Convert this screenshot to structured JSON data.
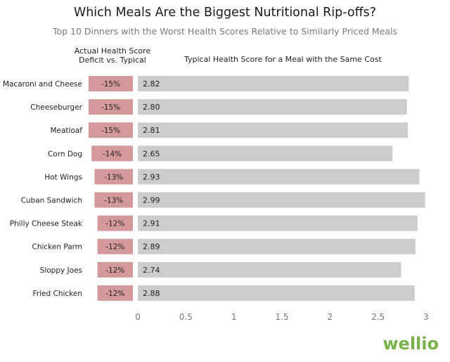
{
  "brand": {
    "text": "wellio",
    "color": "#7ab24a"
  },
  "chart_data": {
    "type": "bar",
    "title": "Which Meals Are the Biggest Nutritional Rip-offs?",
    "subtitle": "Top 10 Dinners with the Worst Health Scores Relative to Similarly Priced Meals",
    "categories": [
      "Macaroni and Cheese",
      "Cheeseburger",
      "Meatloaf",
      "Corn Dog",
      "Hot Wings",
      "Cuban Sandwich",
      "Philly Cheese Steak",
      "Chicken Parm",
      "Sloppy Joes",
      "Fried Chicken"
    ],
    "deficit_header": [
      "Actual Health Score",
      "Deficit vs. Typical"
    ],
    "deficit": {
      "values": [
        -15,
        -15,
        -15,
        -14,
        -13,
        -13,
        -12,
        -12,
        -12,
        -12
      ],
      "labels": [
        "-15%",
        "-15%",
        "-15%",
        "-14%",
        "-13%",
        "-13%",
        "-12%",
        "-12%",
        "-12%",
        "-12%"
      ],
      "color": "#d4999b"
    },
    "series": [
      {
        "name": "Typical Health Score for a Meal with the Same Cost",
        "values": [
          2.82,
          2.8,
          2.81,
          2.65,
          2.93,
          2.99,
          2.91,
          2.89,
          2.74,
          2.88
        ],
        "labels": [
          "2.82",
          "2.80",
          "2.81",
          "2.65",
          "2.93",
          "2.99",
          "2.91",
          "2.89",
          "2.74",
          "2.88"
        ],
        "color": "#cccccc"
      }
    ],
    "xlim": [
      0,
      3
    ],
    "xticks": [
      0,
      0.5,
      1,
      1.5,
      2,
      2.5,
      3
    ],
    "xtick_labels": [
      "0",
      "0.5",
      "1",
      "1.5",
      "2",
      "2.5",
      "3"
    ],
    "grid": false,
    "legend": "none"
  }
}
